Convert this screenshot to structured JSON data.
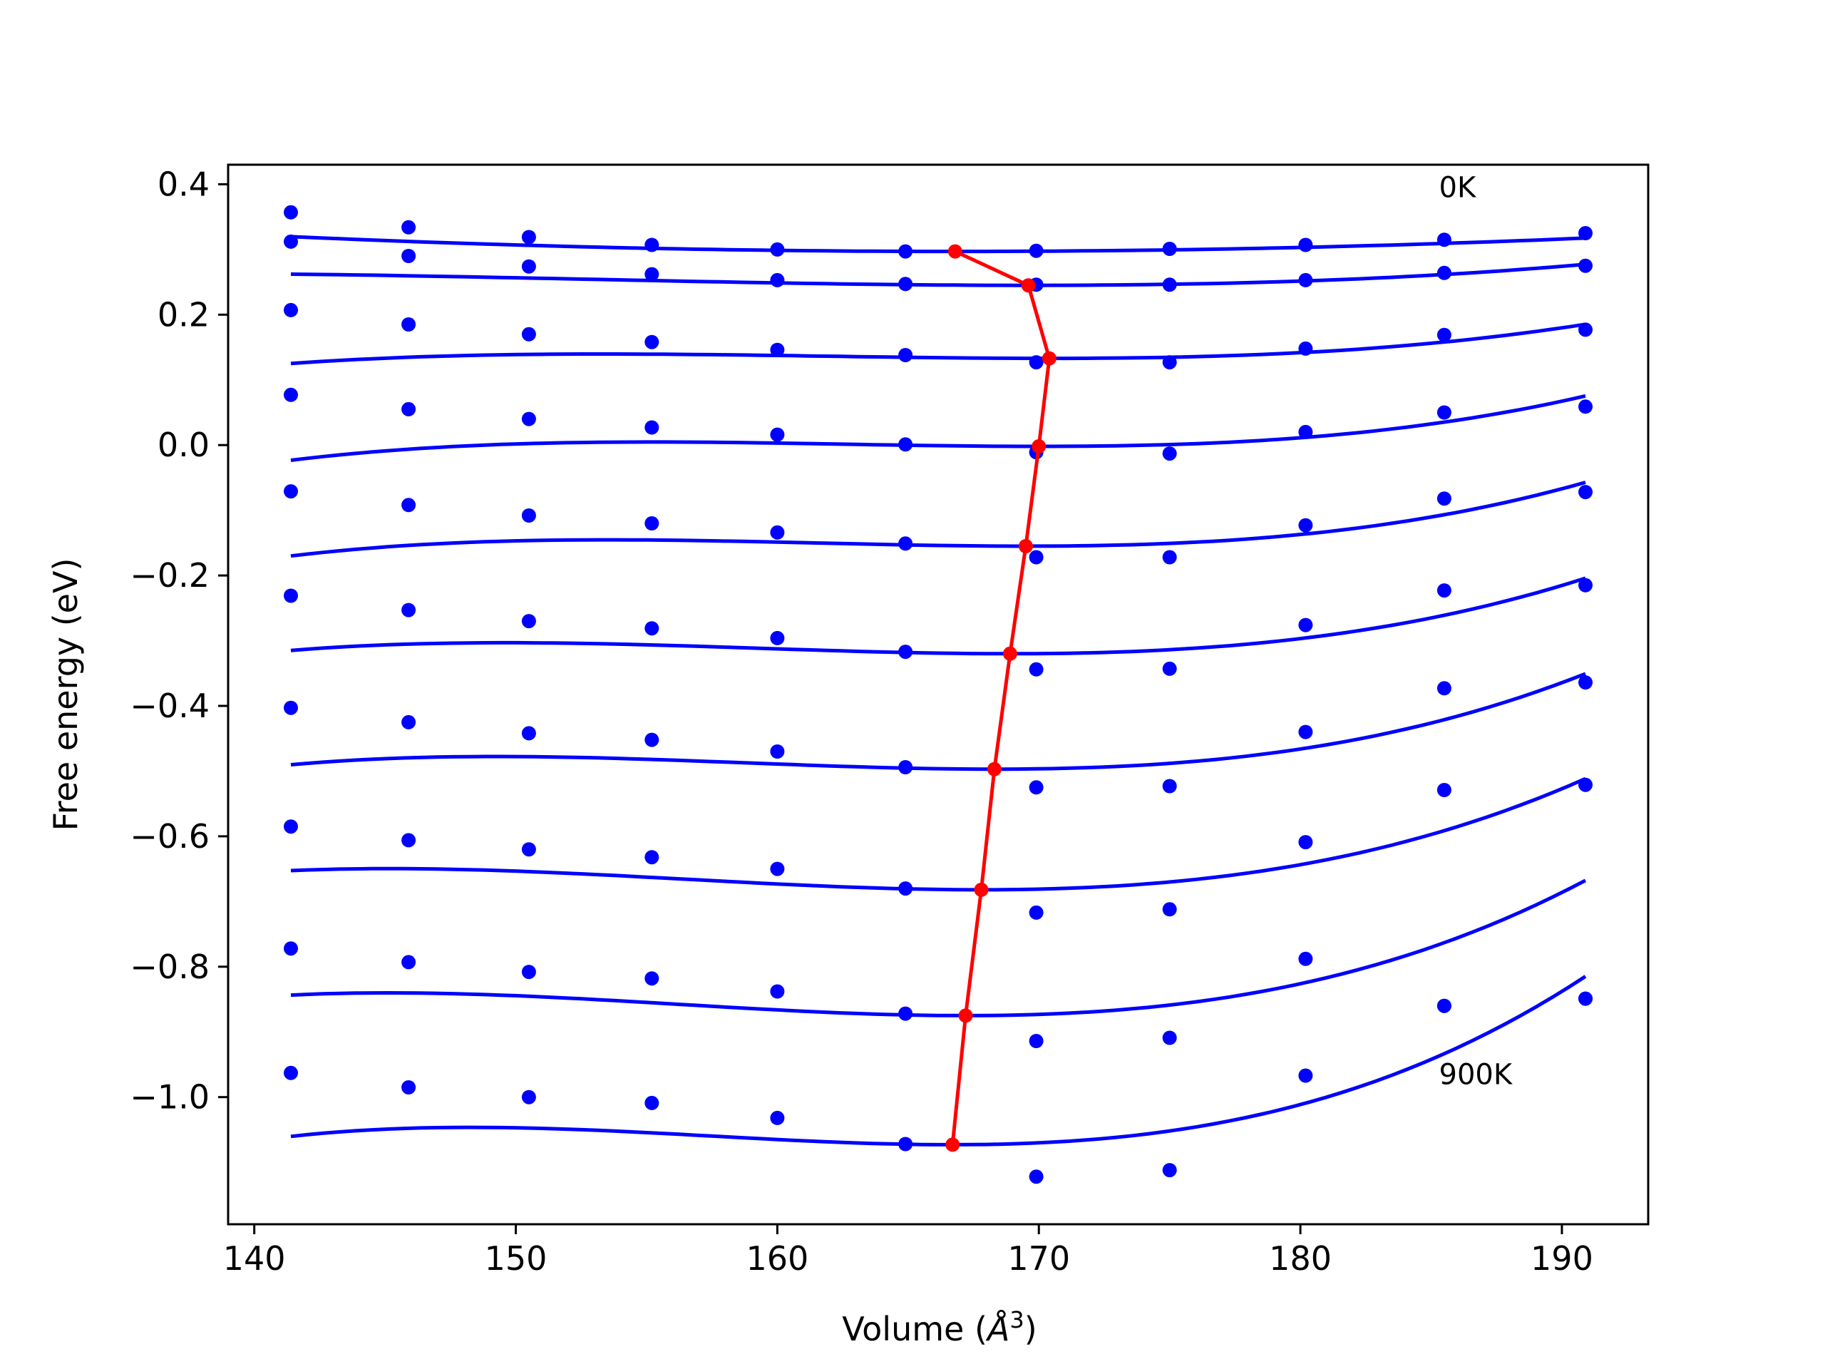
{
  "chart_data": {
    "type": "scatter",
    "xlabel": "Volume",
    "xlabel_unit": "Å",
    "xlabel_unit_exp": "3",
    "ylabel": "Free energy (eV)",
    "xlim": [
      139.0,
      193.3
    ],
    "ylim": [
      -1.195,
      0.43
    ],
    "xticks": [
      140,
      150,
      160,
      170,
      180,
      190
    ],
    "xtick_labels": [
      "140",
      "150",
      "160",
      "170",
      "180",
      "190"
    ],
    "yticks": [
      0.4,
      0.2,
      0.0,
      -0.2,
      -0.4,
      -0.6,
      -0.8,
      -1.0
    ],
    "ytick_labels": [
      "0.4",
      "0.2",
      "0.0",
      "−0.2",
      "−0.4",
      "−0.6",
      "−0.8",
      "−1.0"
    ],
    "annotations": [
      {
        "text": "0K",
        "x": 185.3,
        "y": 0.38
      },
      {
        "text": "900K",
        "x": 185.3,
        "y": -0.98
      }
    ],
    "colors": {
      "data": "#0000ff",
      "fit": "#0000ff",
      "minimum": "#ff0000"
    },
    "x": [
      141.4,
      145.9,
      150.5,
      155.2,
      160.0,
      164.9,
      169.9,
      175.0,
      180.2,
      185.5,
      190.9
    ],
    "series": [
      {
        "values": [
          0.357,
          0.334,
          0.319,
          0.307,
          0.3,
          0.297,
          0.298,
          0.301,
          0.307,
          0.315,
          0.325
        ],
        "fit": {
          "x_start": 141.4,
          "x_end": 190.9,
          "vmin": 166.8,
          "fmin": 0.297,
          "a": 3.52e-05,
          "b": 3.2e-09
        }
      },
      {
        "values": [
          0.312,
          0.29,
          0.274,
          0.262,
          0.253,
          0.247,
          0.246,
          0.246,
          0.253,
          0.264,
          0.275
        ],
        "fit": {
          "x_start": 141.4,
          "x_end": 190.9,
          "vmin": 169.6,
          "fmin": 0.245,
          "a": 4.98e-05,
          "b": 1e-06
        }
      },
      {
        "values": [
          0.207,
          0.185,
          0.17,
          0.158,
          0.146,
          0.138,
          0.127,
          0.127,
          0.148,
          0.169,
          0.177
        ],
        "fit": {
          "x_start": 141.4,
          "x_end": 190.9,
          "vmin": 170.4,
          "fmin": 0.133,
          "a": 6.9e-05,
          "b": 2.7e-06
        }
      },
      {
        "values": [
          0.077,
          0.055,
          0.04,
          0.027,
          0.016,
          0.001,
          -0.011,
          -0.013,
          0.02,
          0.05,
          0.059
        ],
        "fit": {
          "x_start": 141.4,
          "x_end": 190.9,
          "vmin": 170.0,
          "fmin": -0.002,
          "a": 9.13e-05,
          "b": 4.1e-06
        }
      },
      {
        "values": [
          -0.071,
          -0.092,
          -0.108,
          -0.12,
          -0.134,
          -0.151,
          -0.172,
          -0.172,
          -0.123,
          -0.082,
          -0.072
        ],
        "fit": {
          "x_start": 141.4,
          "x_end": 190.9,
          "vmin": 169.5,
          "fmin": -0.155,
          "a": 0.000113,
          "b": 4.7e-06
        }
      },
      {
        "values": [
          -0.231,
          -0.253,
          -0.27,
          -0.281,
          -0.296,
          -0.317,
          -0.344,
          -0.343,
          -0.276,
          -0.223,
          -0.215
        ],
        "fit": {
          "x_start": 141.4,
          "x_end": 190.9,
          "vmin": 168.9,
          "fmin": -0.32,
          "a": 0.000136,
          "b": 4.7e-06
        }
      },
      {
        "values": [
          -0.403,
          -0.425,
          -0.442,
          -0.452,
          -0.47,
          -0.494,
          -0.525,
          -0.523,
          -0.44,
          -0.373,
          -0.364
        ],
        "fit": {
          "x_start": 141.4,
          "x_end": 190.9,
          "vmin": 168.3,
          "fmin": -0.497,
          "a": 0.00016,
          "b": 5.6e-06
        }
      },
      {
        "values": [
          -0.585,
          -0.606,
          -0.62,
          -0.632,
          -0.65,
          -0.68,
          -0.717,
          -0.712,
          -0.609,
          -0.529,
          -0.521
        ],
        "fit": {
          "x_start": 141.4,
          "x_end": 190.9,
          "vmin": 167.8,
          "fmin": -0.682,
          "a": 0.00019,
          "b": 5.6e-06
        }
      },
      {
        "values": [
          -0.772,
          -0.793,
          -0.808,
          -0.818,
          -0.838,
          -0.872,
          -0.914,
          -0.909,
          -0.788,
          -0.86,
          -0.849
        ],
        "fit": {
          "x_start": 141.4,
          "x_end": 190.9,
          "vmin": 167.2,
          "fmin": -0.875,
          "a": 0.000215,
          "b": 6.5e-06
        }
      },
      {
        "values": [
          -0.963,
          -0.985,
          -1.0,
          -1.009,
          -1.032,
          -1.072,
          -1.122,
          -1.112,
          -0.967,
          -0.86,
          -0.849
        ],
        "fit": {
          "x_start": 141.4,
          "x_end": 190.9,
          "vmin": 166.7,
          "fmin": -1.073,
          "a": 0.000235,
          "b": 8.5e-06
        }
      }
    ],
    "minimum_path": {
      "x": [
        166.8,
        169.6,
        170.4,
        170.0,
        169.5,
        168.9,
        168.3,
        167.8,
        167.2,
        166.7
      ],
      "y": [
        0.297,
        0.245,
        0.133,
        -0.002,
        -0.155,
        -0.32,
        -0.497,
        -0.682,
        -0.875,
        -1.073
      ]
    }
  }
}
